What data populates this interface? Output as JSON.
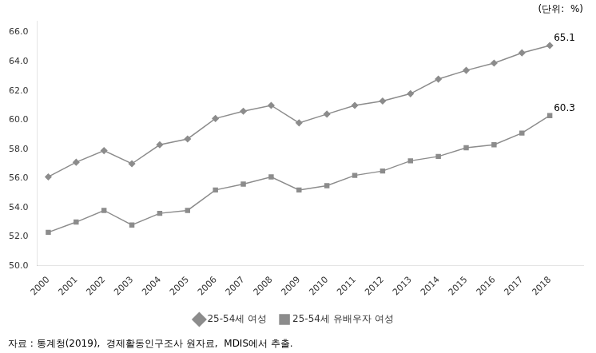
{
  "chart_data": {
    "type": "line",
    "x": [
      2000,
      2001,
      2002,
      2003,
      2004,
      2005,
      2006,
      2007,
      2008,
      2009,
      2010,
      2011,
      2012,
      2013,
      2014,
      2015,
      2016,
      2017,
      2018
    ],
    "series": [
      {
        "name": "25-54세 여성",
        "color": "#8c8c8c",
        "marker": "diamond",
        "values": [
          56.1,
          57.1,
          57.9,
          57.0,
          58.3,
          58.7,
          60.1,
          60.6,
          61.0,
          59.8,
          60.4,
          61.0,
          61.3,
          61.8,
          62.8,
          63.4,
          63.9,
          64.6,
          65.1
        ]
      },
      {
        "name": "25-54세 유배우자 여성",
        "color": "#8c8c8c",
        "marker": "square",
        "values": [
          52.3,
          53.0,
          53.8,
          52.8,
          53.6,
          53.8,
          55.2,
          55.6,
          56.1,
          55.2,
          55.5,
          56.2,
          56.5,
          57.2,
          57.5,
          58.1,
          58.3,
          59.1,
          60.3
        ]
      }
    ],
    "xlim": [
      1999.6,
      2019.2
    ],
    "xticks": [
      2000,
      2001,
      2002,
      2003,
      2004,
      2005,
      2006,
      2007,
      2008,
      2009,
      2010,
      2011,
      2012,
      2013,
      2014,
      2015,
      2016,
      2017,
      2018
    ],
    "ylim": [
      50.0,
      66.8
    ],
    "yticks": [
      {
        "value": 50.0,
        "label": "50.0"
      },
      {
        "value": 52.0,
        "label": "52.0"
      },
      {
        "value": 54.0,
        "label": "54.0"
      },
      {
        "value": 56.0,
        "label": "56.0"
      },
      {
        "value": 58.0,
        "label": "58.0"
      },
      {
        "value": 60.0,
        "label": "60.0"
      },
      {
        "value": 62.0,
        "label": "62.0"
      },
      {
        "value": 64.0,
        "label": "64.0"
      },
      {
        "value": 66.0,
        "label": "66.0"
      }
    ],
    "annotations": [
      {
        "text": "65.1",
        "x": 2018,
        "y": 65.1
      },
      {
        "text": "60.3",
        "x": 2018,
        "y": 60.3
      }
    ],
    "unit_label": "(단위:  %)",
    "source": "자료 : 통계청(2019),  경제활동인구조사 원자료,  MDIS에서 추출.",
    "grid": false,
    "legend": "bottom"
  }
}
